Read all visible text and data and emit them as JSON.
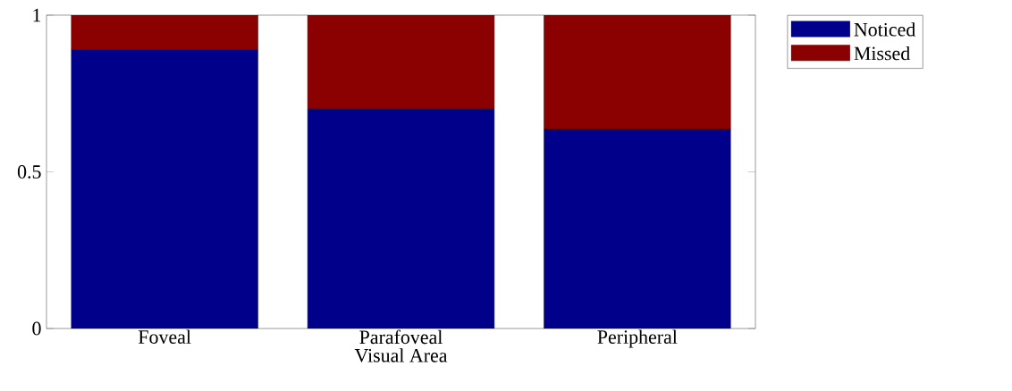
{
  "chart_data": {
    "type": "bar",
    "stacked": true,
    "categories": [
      "Foveal",
      "Parafoveal",
      "Peripheral"
    ],
    "xlabel": "Visual Area",
    "series": [
      {
        "name": "Noticed",
        "color": "#00008b",
        "values": [
          0.89,
          0.7,
          0.635
        ]
      },
      {
        "name": "Missed",
        "color": "#8b0000",
        "values": [
          0.11,
          0.3,
          0.365
        ]
      }
    ],
    "ylim": [
      0,
      1
    ],
    "yticks": [
      0,
      0.5,
      1
    ],
    "legend": "top right"
  }
}
